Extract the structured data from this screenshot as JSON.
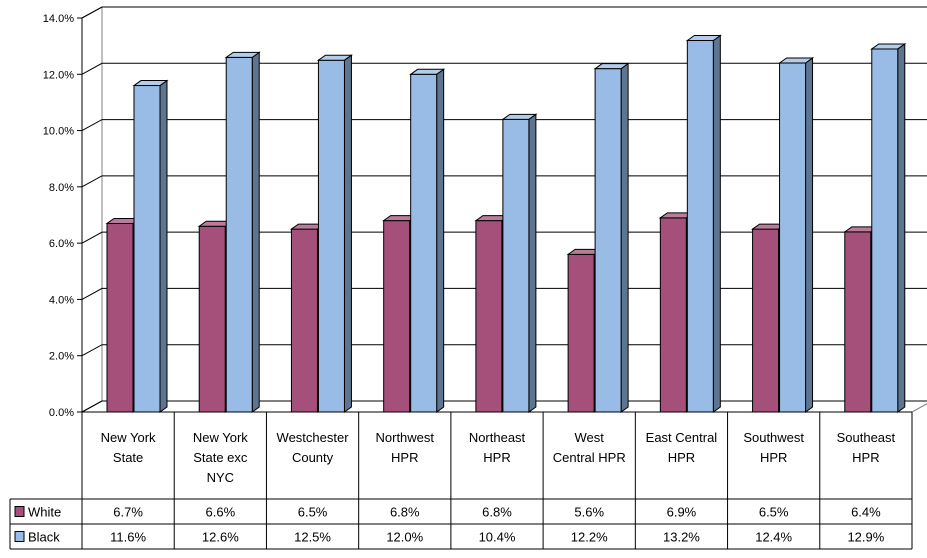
{
  "chart_data": {
    "type": "bar",
    "title": "",
    "xlabel": "",
    "ylabel": "",
    "ylim": [
      0,
      14
    ],
    "y_ticks": [
      "0.0%",
      "2.0%",
      "4.0%",
      "6.0%",
      "8.0%",
      "10.0%",
      "12.0%",
      "14.0%"
    ],
    "grid": "horizontal",
    "legend": "data-table",
    "categories": [
      [
        "New York",
        "State"
      ],
      [
        "New York",
        "State exc",
        "NYC"
      ],
      [
        "Westchester",
        "County"
      ],
      [
        "Northwest",
        "HPR"
      ],
      [
        "Northeast",
        "HPR"
      ],
      [
        "West",
        "Central HPR"
      ],
      [
        "East Central",
        "HPR"
      ],
      [
        "Southwest",
        "HPR"
      ],
      [
        "Southeast",
        "HPR"
      ]
    ],
    "series": [
      {
        "name": "White",
        "color": "#A4507A",
        "values": [
          6.7,
          6.6,
          6.5,
          6.8,
          6.8,
          5.6,
          6.9,
          6.5,
          6.4
        ],
        "labels": [
          "6.7%",
          "6.6%",
          "6.5%",
          "6.8%",
          "6.8%",
          "5.6%",
          "6.9%",
          "6.5%",
          "6.4%"
        ]
      },
      {
        "name": "Black",
        "color": "#98BCE6",
        "values": [
          11.6,
          12.6,
          12.5,
          12.0,
          10.4,
          12.2,
          13.2,
          12.4,
          12.9
        ],
        "labels": [
          "11.6%",
          "12.6%",
          "12.5%",
          "12.0%",
          "10.4%",
          "12.2%",
          "13.2%",
          "12.4%",
          "12.9%"
        ]
      }
    ]
  }
}
